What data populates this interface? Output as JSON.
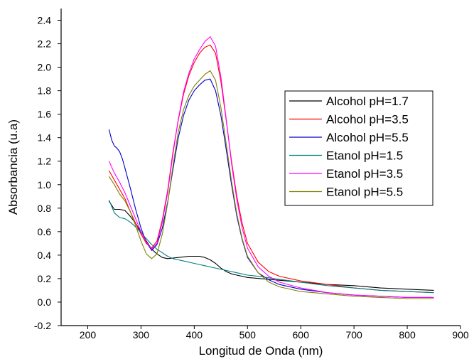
{
  "chart_data": {
    "type": "line",
    "title": "",
    "xlabel": "Longitud de Onda (nm)",
    "ylabel": "Absorbancia (u.a)",
    "xlim": [
      150,
      900
    ],
    "ylim": [
      -0.2,
      2.5
    ],
    "x_ticks": [
      200,
      300,
      400,
      500,
      600,
      700,
      800,
      900
    ],
    "y_ticks": [
      -0.2,
      0.0,
      0.2,
      0.4,
      0.6,
      0.8,
      1.0,
      1.2,
      1.4,
      1.6,
      1.8,
      2.0,
      2.2,
      2.4
    ],
    "x_tick_labels": [
      "200",
      "300",
      "400",
      "500",
      "600",
      "700",
      "800",
      "900"
    ],
    "y_tick_labels": [
      "-0.2",
      "0.0",
      "0.2",
      "0.4",
      "0.6",
      "0.8",
      "1.0",
      "1.2",
      "1.4",
      "1.6",
      "1.8",
      "2.0",
      "2.2",
      "2.4"
    ],
    "grid": false,
    "legend_position": "right",
    "series": [
      {
        "name": "Alcohol pH=1.7",
        "color": "#000000",
        "points": [
          [
            240,
            0.86
          ],
          [
            250,
            0.79
          ],
          [
            260,
            0.79
          ],
          [
            270,
            0.78
          ],
          [
            280,
            0.73
          ],
          [
            290,
            0.67
          ],
          [
            300,
            0.6
          ],
          [
            310,
            0.52
          ],
          [
            320,
            0.45
          ],
          [
            330,
            0.41
          ],
          [
            340,
            0.38
          ],
          [
            350,
            0.37
          ],
          [
            360,
            0.375
          ],
          [
            370,
            0.38
          ],
          [
            380,
            0.385
          ],
          [
            390,
            0.39
          ],
          [
            400,
            0.39
          ],
          [
            410,
            0.39
          ],
          [
            420,
            0.38
          ],
          [
            430,
            0.36
          ],
          [
            440,
            0.33
          ],
          [
            450,
            0.29
          ],
          [
            460,
            0.26
          ],
          [
            470,
            0.24
          ],
          [
            480,
            0.23
          ],
          [
            500,
            0.21
          ],
          [
            550,
            0.19
          ],
          [
            600,
            0.17
          ],
          [
            650,
            0.15
          ],
          [
            700,
            0.14
          ],
          [
            750,
            0.12
          ],
          [
            800,
            0.11
          ],
          [
            850,
            0.1
          ]
        ]
      },
      {
        "name": "Alcohol pH=3.5",
        "color": "#ff0000",
        "points": [
          [
            240,
            1.12
          ],
          [
            250,
            1.04
          ],
          [
            260,
            0.96
          ],
          [
            270,
            0.88
          ],
          [
            280,
            0.77
          ],
          [
            290,
            0.67
          ],
          [
            300,
            0.58
          ],
          [
            310,
            0.5
          ],
          [
            320,
            0.46
          ],
          [
            330,
            0.52
          ],
          [
            340,
            0.7
          ],
          [
            350,
            0.95
          ],
          [
            360,
            1.28
          ],
          [
            370,
            1.55
          ],
          [
            380,
            1.77
          ],
          [
            390,
            1.93
          ],
          [
            400,
            2.04
          ],
          [
            410,
            2.12
          ],
          [
            420,
            2.17
          ],
          [
            430,
            2.19
          ],
          [
            440,
            2.12
          ],
          [
            450,
            1.88
          ],
          [
            460,
            1.55
          ],
          [
            470,
            1.2
          ],
          [
            480,
            0.9
          ],
          [
            490,
            0.67
          ],
          [
            500,
            0.5
          ],
          [
            520,
            0.34
          ],
          [
            540,
            0.26
          ],
          [
            560,
            0.22
          ],
          [
            600,
            0.18
          ],
          [
            650,
            0.15
          ],
          [
            700,
            0.12
          ],
          [
            750,
            0.1
          ],
          [
            800,
            0.09
          ],
          [
            850,
            0.08
          ]
        ]
      },
      {
        "name": "Alcohol pH=5.5",
        "color": "#0000cc",
        "points": [
          [
            240,
            1.47
          ],
          [
            245,
            1.38
          ],
          [
            250,
            1.33
          ],
          [
            255,
            1.31
          ],
          [
            260,
            1.28
          ],
          [
            265,
            1.22
          ],
          [
            270,
            1.14
          ],
          [
            280,
            0.97
          ],
          [
            290,
            0.79
          ],
          [
            300,
            0.63
          ],
          [
            310,
            0.51
          ],
          [
            320,
            0.44
          ],
          [
            330,
            0.49
          ],
          [
            340,
            0.63
          ],
          [
            350,
            0.85
          ],
          [
            360,
            1.13
          ],
          [
            370,
            1.4
          ],
          [
            380,
            1.59
          ],
          [
            390,
            1.72
          ],
          [
            400,
            1.8
          ],
          [
            410,
            1.85
          ],
          [
            420,
            1.89
          ],
          [
            430,
            1.9
          ],
          [
            440,
            1.8
          ],
          [
            450,
            1.59
          ],
          [
            460,
            1.3
          ],
          [
            470,
            1.0
          ],
          [
            480,
            0.73
          ],
          [
            490,
            0.53
          ],
          [
            500,
            0.38
          ],
          [
            520,
            0.25
          ],
          [
            540,
            0.19
          ],
          [
            560,
            0.15
          ],
          [
            600,
            0.11
          ],
          [
            650,
            0.08
          ],
          [
            700,
            0.06
          ],
          [
            750,
            0.05
          ],
          [
            800,
            0.04
          ],
          [
            850,
            0.04
          ]
        ]
      },
      {
        "name": "Etanol pH=1.5",
        "color": "#008080",
        "points": [
          [
            240,
            0.87
          ],
          [
            250,
            0.76
          ],
          [
            260,
            0.72
          ],
          [
            270,
            0.71
          ],
          [
            280,
            0.68
          ],
          [
            290,
            0.64
          ],
          [
            300,
            0.59
          ],
          [
            310,
            0.54
          ],
          [
            320,
            0.49
          ],
          [
            330,
            0.45
          ],
          [
            340,
            0.42
          ],
          [
            350,
            0.39
          ],
          [
            360,
            0.37
          ],
          [
            370,
            0.36
          ],
          [
            380,
            0.35
          ],
          [
            400,
            0.33
          ],
          [
            420,
            0.31
          ],
          [
            440,
            0.29
          ],
          [
            460,
            0.27
          ],
          [
            480,
            0.25
          ],
          [
            500,
            0.23
          ],
          [
            520,
            0.22
          ],
          [
            550,
            0.2
          ],
          [
            600,
            0.17
          ],
          [
            650,
            0.14
          ],
          [
            700,
            0.12
          ],
          [
            750,
            0.1
          ],
          [
            800,
            0.09
          ],
          [
            850,
            0.08
          ]
        ]
      },
      {
        "name": "Etanol pH=3.5",
        "color": "#ff00ff",
        "points": [
          [
            240,
            1.2
          ],
          [
            250,
            1.1
          ],
          [
            260,
            1.02
          ],
          [
            270,
            0.93
          ],
          [
            280,
            0.82
          ],
          [
            290,
            0.71
          ],
          [
            300,
            0.6
          ],
          [
            310,
            0.51
          ],
          [
            320,
            0.45
          ],
          [
            330,
            0.5
          ],
          [
            340,
            0.68
          ],
          [
            350,
            0.93
          ],
          [
            360,
            1.26
          ],
          [
            370,
            1.56
          ],
          [
            380,
            1.79
          ],
          [
            390,
            1.95
          ],
          [
            400,
            2.07
          ],
          [
            410,
            2.15
          ],
          [
            420,
            2.22
          ],
          [
            430,
            2.26
          ],
          [
            440,
            2.18
          ],
          [
            450,
            1.92
          ],
          [
            460,
            1.56
          ],
          [
            470,
            1.18
          ],
          [
            480,
            0.87
          ],
          [
            490,
            0.63
          ],
          [
            500,
            0.46
          ],
          [
            520,
            0.3
          ],
          [
            540,
            0.22
          ],
          [
            560,
            0.17
          ],
          [
            600,
            0.12
          ],
          [
            650,
            0.08
          ],
          [
            700,
            0.06
          ],
          [
            750,
            0.05
          ],
          [
            800,
            0.04
          ],
          [
            850,
            0.04
          ]
        ]
      },
      {
        "name": "Etanol pH=5.5",
        "color": "#808000",
        "points": [
          [
            240,
            1.07
          ],
          [
            250,
            1.0
          ],
          [
            260,
            0.92
          ],
          [
            270,
            0.86
          ],
          [
            280,
            0.77
          ],
          [
            290,
            0.65
          ],
          [
            300,
            0.52
          ],
          [
            310,
            0.41
          ],
          [
            320,
            0.37
          ],
          [
            330,
            0.41
          ],
          [
            340,
            0.58
          ],
          [
            350,
            0.84
          ],
          [
            360,
            1.16
          ],
          [
            370,
            1.45
          ],
          [
            380,
            1.64
          ],
          [
            390,
            1.76
          ],
          [
            400,
            1.84
          ],
          [
            410,
            1.89
          ],
          [
            420,
            1.94
          ],
          [
            430,
            1.97
          ],
          [
            440,
            1.89
          ],
          [
            450,
            1.66
          ],
          [
            460,
            1.35
          ],
          [
            470,
            1.03
          ],
          [
            480,
            0.75
          ],
          [
            490,
            0.54
          ],
          [
            500,
            0.39
          ],
          [
            520,
            0.25
          ],
          [
            540,
            0.17
          ],
          [
            560,
            0.13
          ],
          [
            600,
            0.09
          ],
          [
            650,
            0.07
          ],
          [
            700,
            0.05
          ],
          [
            750,
            0.04
          ],
          [
            800,
            0.03
          ],
          [
            850,
            0.03
          ]
        ]
      }
    ]
  }
}
